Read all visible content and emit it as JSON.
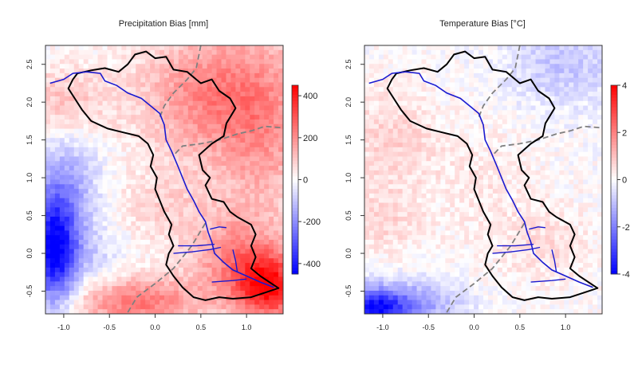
{
  "chart_data": [
    {
      "type": "heatmap",
      "title": "Precipitation Bias [mm]",
      "xlabel": "",
      "ylabel": "",
      "xlim": [
        -1.2,
        1.4
      ],
      "ylim": [
        -0.8,
        2.75
      ],
      "x_ticks": [
        "-1.0",
        "-0.5",
        "0.0",
        "0.5",
        "1.0"
      ],
      "y_ticks": [
        "-0.5",
        "0.0",
        "0.5",
        "1.0",
        "1.5",
        "2.0",
        "2.5"
      ],
      "colorbar": {
        "range": [
          -450,
          450
        ],
        "ticks": [
          "400",
          "200",
          "0",
          "-200",
          "-400"
        ],
        "low_color": "#0000ff",
        "mid_color": "#ffffff",
        "high_color": "#ff0000"
      },
      "field_sources": [
        {
          "x": -1.1,
          "y": 0.0,
          "sx": 0.18,
          "sy": 0.5,
          "value": -420
        },
        {
          "x": -1.0,
          "y": 0.8,
          "sx": 0.28,
          "sy": 0.55,
          "value": -160
        },
        {
          "x": -0.6,
          "y": -0.1,
          "sx": 0.25,
          "sy": 0.3,
          "value": -60
        },
        {
          "x": 0.5,
          "y": 2.1,
          "sx": 0.5,
          "sy": 0.6,
          "value": 190
        },
        {
          "x": 1.2,
          "y": 1.7,
          "sx": 0.4,
          "sy": 0.9,
          "value": 170
        },
        {
          "x": -0.2,
          "y": -0.65,
          "sx": 0.5,
          "sy": 0.25,
          "value": 240
        },
        {
          "x": 1.25,
          "y": -0.45,
          "sx": 0.25,
          "sy": 0.3,
          "value": 380
        },
        {
          "x": 0.9,
          "y": -0.1,
          "sx": 0.35,
          "sy": 0.4,
          "value": 200
        },
        {
          "x": -1.0,
          "y": 2.0,
          "sx": 0.35,
          "sy": 0.35,
          "value": 110
        },
        {
          "x": 0.1,
          "y": 0.6,
          "sx": 0.45,
          "sy": 0.35,
          "value": 70
        }
      ]
    },
    {
      "type": "heatmap",
      "title": "Temperature Bias [°C]",
      "xlabel": "",
      "ylabel": "",
      "xlim": [
        -1.2,
        1.4
      ],
      "ylim": [
        -0.8,
        2.75
      ],
      "x_ticks": [
        "-1.0",
        "-0.5",
        "0.0",
        "0.5",
        "1.0"
      ],
      "y_ticks": [
        "-0.5",
        "0.0",
        "0.5",
        "1.0",
        "1.5",
        "2.0",
        "2.5"
      ],
      "colorbar": {
        "range": [
          -4,
          4
        ],
        "ticks": [
          "4",
          "2",
          "0",
          "-2",
          "-4"
        ],
        "low_color": "#0000ff",
        "mid_color": "#ffffff",
        "high_color": "#ff0000"
      },
      "field_sources": [
        {
          "x": -1.1,
          "y": -0.75,
          "sx": 0.25,
          "sy": 0.2,
          "value": -3.6
        },
        {
          "x": -0.6,
          "y": -0.65,
          "sx": 0.35,
          "sy": 0.2,
          "value": -1.4
        },
        {
          "x": 1.0,
          "y": 2.5,
          "sx": 0.45,
          "sy": 0.4,
          "value": -0.9
        },
        {
          "x": -0.9,
          "y": 1.5,
          "sx": 0.35,
          "sy": 0.5,
          "value": 0.7
        },
        {
          "x": 0.1,
          "y": 0.9,
          "sx": 0.4,
          "sy": 0.6,
          "value": 0.35
        },
        {
          "x": 0.8,
          "y": 0.1,
          "sx": 0.35,
          "sy": 0.4,
          "value": 0.5
        },
        {
          "x": -1.0,
          "y": 0.4,
          "sx": 0.3,
          "sy": 0.3,
          "value": 0.6
        }
      ]
    }
  ],
  "overlays": {
    "catchment_outline_color": "#000000",
    "river_color": "#1a1ad0",
    "dashed_line_color": "#808080",
    "catchment": [
      [
        -0.3,
        2.5
      ],
      [
        -0.22,
        2.63
      ],
      [
        -0.1,
        2.67
      ],
      [
        0.0,
        2.58
      ],
      [
        0.12,
        2.6
      ],
      [
        0.2,
        2.43
      ],
      [
        0.35,
        2.4
      ],
      [
        0.5,
        2.25
      ],
      [
        0.62,
        2.3
      ],
      [
        0.7,
        2.15
      ],
      [
        0.82,
        2.05
      ],
      [
        0.88,
        1.92
      ],
      [
        0.78,
        1.72
      ],
      [
        0.75,
        1.55
      ],
      [
        0.62,
        1.45
      ],
      [
        0.48,
        1.3
      ],
      [
        0.52,
        1.1
      ],
      [
        0.6,
        1.0
      ],
      [
        0.55,
        0.9
      ],
      [
        0.62,
        0.72
      ],
      [
        0.75,
        0.68
      ],
      [
        0.82,
        0.55
      ],
      [
        0.9,
        0.48
      ],
      [
        1.05,
        0.38
      ],
      [
        1.1,
        0.25
      ],
      [
        1.05,
        0.1
      ],
      [
        1.1,
        -0.05
      ],
      [
        1.05,
        -0.2
      ],
      [
        1.15,
        -0.3
      ],
      [
        1.3,
        -0.42
      ],
      [
        1.35,
        -0.46
      ],
      [
        1.2,
        -0.52
      ],
      [
        1.05,
        -0.58
      ],
      [
        0.85,
        -0.6
      ],
      [
        0.7,
        -0.58
      ],
      [
        0.55,
        -0.62
      ],
      [
        0.42,
        -0.58
      ],
      [
        0.3,
        -0.45
      ],
      [
        0.2,
        -0.3
      ],
      [
        0.12,
        -0.15
      ],
      [
        0.15,
        0.0
      ],
      [
        0.2,
        0.1
      ],
      [
        0.15,
        0.25
      ],
      [
        0.18,
        0.38
      ],
      [
        0.1,
        0.55
      ],
      [
        0.05,
        0.7
      ],
      [
        0.0,
        0.85
      ],
      [
        0.02,
        1.0
      ],
      [
        -0.05,
        1.15
      ],
      [
        -0.02,
        1.3
      ],
      [
        -0.08,
        1.45
      ],
      [
        -0.18,
        1.55
      ],
      [
        -0.35,
        1.6
      ],
      [
        -0.52,
        1.65
      ],
      [
        -0.7,
        1.75
      ],
      [
        -0.8,
        1.9
      ],
      [
        -0.88,
        2.05
      ],
      [
        -0.95,
        2.18
      ],
      [
        -0.9,
        2.3
      ],
      [
        -0.85,
        2.38
      ],
      [
        -0.7,
        2.42
      ],
      [
        -0.55,
        2.45
      ],
      [
        -0.4,
        2.4
      ],
      [
        -0.3,
        2.5
      ]
    ],
    "river": [
      [
        -1.15,
        2.25
      ],
      [
        -1.0,
        2.3
      ],
      [
        -0.9,
        2.38
      ],
      [
        -0.75,
        2.4
      ],
      [
        -0.6,
        2.38
      ],
      [
        -0.55,
        2.28
      ],
      [
        -0.42,
        2.22
      ],
      [
        -0.3,
        2.12
      ],
      [
        -0.15,
        2.05
      ],
      [
        -0.05,
        1.95
      ],
      [
        0.05,
        1.85
      ],
      [
        0.1,
        1.7
      ],
      [
        0.12,
        1.5
      ],
      [
        0.18,
        1.35
      ],
      [
        0.25,
        1.15
      ],
      [
        0.3,
        1.0
      ],
      [
        0.35,
        0.85
      ],
      [
        0.42,
        0.7
      ],
      [
        0.48,
        0.55
      ],
      [
        0.55,
        0.42
      ],
      [
        0.58,
        0.28
      ],
      [
        0.62,
        0.15
      ],
      [
        0.65,
        0.0
      ],
      [
        0.75,
        -0.12
      ],
      [
        0.85,
        -0.22
      ],
      [
        1.0,
        -0.3
      ],
      [
        1.15,
        -0.38
      ],
      [
        1.3,
        -0.45
      ]
    ],
    "tributaries": [
      [
        [
          0.2,
          0.0
        ],
        [
          0.4,
          0.02
        ],
        [
          0.6,
          0.05
        ],
        [
          0.72,
          0.08
        ]
      ],
      [
        [
          0.6,
          0.32
        ],
        [
          0.7,
          0.35
        ],
        [
          0.78,
          0.34
        ]
      ],
      [
        [
          0.25,
          0.1
        ],
        [
          0.45,
          0.1
        ],
        [
          0.65,
          0.12
        ]
      ],
      [
        [
          0.62,
          -0.38
        ],
        [
          0.85,
          -0.36
        ],
        [
          1.0,
          -0.34
        ]
      ],
      [
        [
          0.85,
          0.05
        ],
        [
          0.88,
          -0.1
        ],
        [
          0.9,
          -0.25
        ]
      ]
    ],
    "dashed_lines": [
      [
        [
          0.5,
          2.75
        ],
        [
          0.45,
          2.45
        ],
        [
          0.35,
          2.3
        ],
        [
          0.2,
          2.12
        ],
        [
          0.1,
          1.95
        ],
        [
          0.05,
          1.8
        ]
      ],
      [
        [
          0.22,
          1.32
        ],
        [
          0.3,
          1.42
        ],
        [
          0.5,
          1.45
        ],
        [
          0.7,
          1.5
        ],
        [
          0.9,
          1.58
        ],
        [
          1.05,
          1.62
        ],
        [
          1.2,
          1.68
        ],
        [
          1.4,
          1.66
        ]
      ],
      [
        [
          -0.3,
          -0.78
        ],
        [
          -0.2,
          -0.58
        ],
        [
          0.0,
          -0.4
        ],
        [
          0.2,
          -0.2
        ],
        [
          0.4,
          0.1
        ],
        [
          0.55,
          0.4
        ]
      ]
    ]
  }
}
